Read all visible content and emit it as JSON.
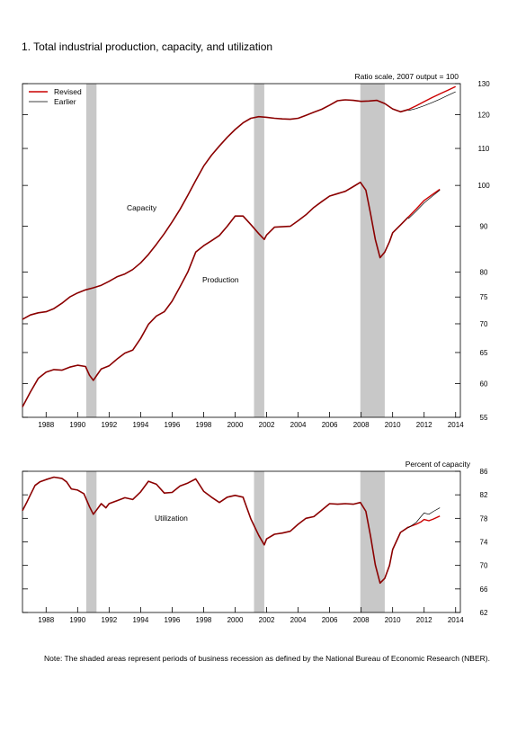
{
  "figure_title": "1. Total industrial production, capacity, and utilization",
  "note": "Note: The shaded areas represent periods of business recession as defined by the National Bureau of Economic Research (NBER).",
  "colors": {
    "revised": "#cc0000",
    "earlier": "#000000",
    "combined": "#8b0000",
    "recession": "#c8c8c8"
  },
  "chart_data": [
    {
      "type": "line",
      "y_scale": "log",
      "scale_note": "Ratio scale, 2007 output = 100",
      "xlim": [
        1986.5,
        2014.3
      ],
      "ylim": [
        55,
        130
      ],
      "x_ticks": [
        1988,
        1990,
        1992,
        1994,
        1996,
        1998,
        2000,
        2002,
        2004,
        2006,
        2008,
        2010,
        2012,
        2014
      ],
      "y_ticks": [
        55,
        60,
        65,
        70,
        75,
        80,
        90,
        100,
        110,
        120,
        130
      ],
      "recessions": [
        [
          1990.55,
          1991.2
        ],
        [
          2001.2,
          2001.85
        ],
        [
          2007.95,
          2009.5
        ]
      ],
      "legend": [
        {
          "label": "Revised",
          "color": "#cc0000"
        },
        {
          "label": "Earlier",
          "color": "#000000"
        }
      ],
      "annotations": [
        "Capacity",
        "Production"
      ],
      "series": [
        {
          "name": "Capacity",
          "x": [
            1986.5,
            1987,
            1987.5,
            1988,
            1988.5,
            1989,
            1989.5,
            1990,
            1990.5,
            1991,
            1991.5,
            1992,
            1992.5,
            1993,
            1993.5,
            1994,
            1994.5,
            1995,
            1995.5,
            1996,
            1996.5,
            1997,
            1997.5,
            1998,
            1998.5,
            1999,
            1999.5,
            2000,
            2000.5,
            2001,
            2001.5,
            2002,
            2002.5,
            2003,
            2003.5,
            2004,
            2004.5,
            2005,
            2005.5,
            2006,
            2006.5,
            2007,
            2007.5,
            2008,
            2008.5,
            2009,
            2009.5,
            2010,
            2010.5,
            2011
          ],
          "y": [
            70.8,
            71.6,
            72.0,
            72.2,
            72.8,
            73.8,
            75.0,
            75.8,
            76.4,
            76.8,
            77.3,
            78.1,
            79.0,
            79.6,
            80.5,
            81.9,
            83.7,
            85.9,
            88.3,
            91.0,
            94.0,
            97.5,
            101.3,
            105.1,
            108.1,
            110.7,
            113.2,
            115.5,
            117.5,
            118.9,
            119.4,
            119.2,
            118.9,
            118.7,
            118.6,
            118.9,
            119.8,
            120.8,
            121.7,
            123.0,
            124.4,
            124.7,
            124.5,
            124.2,
            124.3,
            124.5,
            123.5,
            121.8,
            120.9,
            121.6
          ]
        },
        {
          "name": "Capacity, revised",
          "x": [
            2011,
            2011.5,
            2012,
            2012.5,
            2013,
            2013.5,
            2014
          ],
          "y": [
            121.6,
            122.8,
            124.1,
            125.4,
            126.6,
            127.8,
            129.0
          ]
        },
        {
          "name": "Capacity, earlier",
          "x": [
            2011,
            2011.5,
            2012,
            2012.5,
            2013,
            2013.5,
            2014
          ],
          "y": [
            121.3,
            121.9,
            122.8,
            123.8,
            124.9,
            126.1,
            127.3
          ]
        },
        {
          "name": "Production",
          "x": [
            1986.5,
            1987,
            1987.5,
            1988,
            1988.5,
            1989,
            1989.5,
            1990,
            1990.5,
            1990.75,
            1991,
            1991.25,
            1991.5,
            1992,
            1992.5,
            1993,
            1993.5,
            1994,
            1994.5,
            1995,
            1995.5,
            1996,
            1996.5,
            1997,
            1997.5,
            1998,
            1998.5,
            1999,
            1999.5,
            2000,
            2000.5,
            2001,
            2001.5,
            2001.85,
            2002,
            2002.5,
            2003,
            2003.5,
            2004,
            2004.5,
            2005,
            2005.5,
            2006,
            2006.5,
            2007,
            2007.5,
            2007.95,
            2008.3,
            2008.6,
            2008.9,
            2009.2,
            2009.5,
            2009.8,
            2010,
            2010.5,
            2011
          ],
          "y": [
            56.5,
            58.7,
            60.8,
            61.8,
            62.2,
            62.1,
            62.6,
            62.9,
            62.7,
            61.3,
            60.5,
            61.4,
            62.3,
            62.8,
            63.9,
            64.9,
            65.4,
            67.4,
            69.9,
            71.4,
            72.2,
            74.2,
            77.0,
            80.0,
            84.2,
            85.6,
            86.7,
            87.9,
            90.0,
            92.4,
            92.4,
            90.4,
            88.3,
            87.0,
            88.0,
            89.8,
            89.9,
            90.0,
            91.3,
            92.7,
            94.5,
            95.9,
            97.3,
            97.9,
            98.5,
            99.7,
            100.8,
            98.8,
            93.0,
            87.0,
            83.0,
            84.2,
            86.5,
            88.5,
            90.3,
            92.2
          ]
        },
        {
          "name": "Production, revised",
          "x": [
            2011,
            2011.5,
            2012,
            2012.5,
            2013
          ],
          "y": [
            92.2,
            94.1,
            96.2,
            97.6,
            99.0
          ]
        },
        {
          "name": "Production, earlier",
          "x": [
            2011,
            2011.5,
            2012,
            2012.5,
            2013
          ],
          "y": [
            91.8,
            93.6,
            95.6,
            97.2,
            98.8
          ]
        }
      ]
    },
    {
      "type": "line",
      "scale_note": "Percent of capacity",
      "xlim": [
        1986.5,
        2014.3
      ],
      "ylim": [
        62,
        86
      ],
      "x_ticks": [
        1988,
        1990,
        1992,
        1994,
        1996,
        1998,
        2000,
        2002,
        2004,
        2006,
        2008,
        2010,
        2012,
        2014
      ],
      "y_ticks": [
        62,
        66,
        70,
        74,
        78,
        82,
        86
      ],
      "recessions": [
        [
          1990.55,
          1991.2
        ],
        [
          2001.2,
          2001.85
        ],
        [
          2007.95,
          2009.5
        ]
      ],
      "annotations": [
        "Utilization"
      ],
      "series": [
        {
          "name": "Utilization",
          "x": [
            1986.5,
            1986.75,
            1987,
            1987.3,
            1987.6,
            1988,
            1988.5,
            1989,
            1989.3,
            1989.6,
            1990,
            1990.4,
            1990.75,
            1991,
            1991.2,
            1991.5,
            1991.8,
            1992,
            1992.5,
            1993,
            1993.5,
            1994,
            1994.5,
            1995,
            1995.5,
            1996,
            1996.5,
            1997,
            1997.5,
            1998,
            1998.5,
            1999,
            1999.5,
            2000,
            2000.5,
            2001,
            2001.5,
            2001.85,
            2002,
            2002.5,
            2003,
            2003.5,
            2004,
            2004.5,
            2005,
            2005.5,
            2006,
            2006.5,
            2007,
            2007.5,
            2007.95,
            2008.3,
            2008.6,
            2008.9,
            2009.2,
            2009.5,
            2009.8,
            2010,
            2010.5,
            2011
          ],
          "y": [
            79.3,
            80.6,
            82.0,
            83.6,
            84.2,
            84.6,
            85.0,
            84.8,
            84.2,
            83.0,
            82.8,
            82.2,
            80.0,
            78.7,
            79.4,
            80.5,
            79.8,
            80.5,
            81.0,
            81.5,
            81.2,
            82.5,
            84.3,
            83.8,
            82.3,
            82.4,
            83.5,
            84.0,
            84.7,
            82.6,
            81.6,
            80.7,
            81.6,
            81.9,
            81.6,
            77.9,
            75.1,
            73.5,
            74.5,
            75.3,
            75.5,
            75.8,
            77.0,
            78.0,
            78.3,
            79.4,
            80.5,
            80.4,
            80.5,
            80.4,
            80.7,
            79.2,
            75.0,
            70.1,
            67.0,
            67.8,
            70.0,
            72.7,
            75.6,
            76.5
          ]
        },
        {
          "name": "Utilization, revised",
          "x": [
            2011,
            2011.5,
            2011.8,
            2012,
            2012.3,
            2012.6,
            2013
          ],
          "y": [
            76.5,
            77.0,
            77.4,
            77.8,
            77.6,
            77.9,
            78.4
          ]
        },
        {
          "name": "Utilization, earlier",
          "x": [
            2011,
            2011.5,
            2011.8,
            2012,
            2012.3,
            2012.6,
            2013
          ],
          "y": [
            76.4,
            77.3,
            78.3,
            78.9,
            78.7,
            79.2,
            79.8
          ]
        }
      ]
    }
  ]
}
